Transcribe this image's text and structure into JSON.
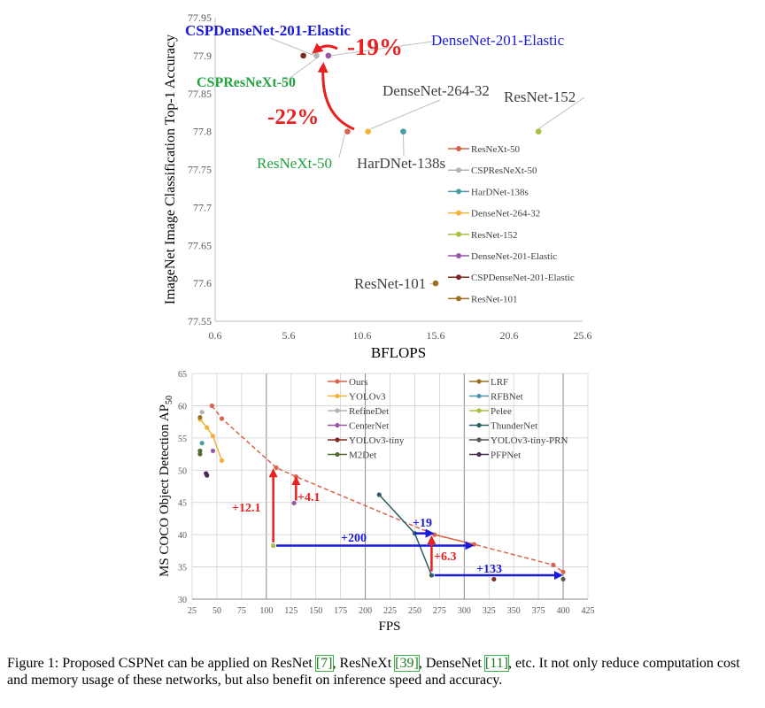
{
  "chart_data": [
    {
      "type": "scatter",
      "title": "",
      "xlabel": "BFLOPS",
      "ylabel": "ImageNet Image Classification Top-1 Accuracy",
      "xlim": [
        0.6,
        25.6
      ],
      "ylim": [
        77.55,
        77.95
      ],
      "xticks": [
        "0.6",
        "5.6",
        "10.6",
        "15.6",
        "20.6",
        "25.6"
      ],
      "yticks": [
        "77.55",
        "77.6",
        "77.65",
        "77.7",
        "77.75",
        "77.8",
        "77.85",
        "77.9",
        "77.95"
      ],
      "grid": false,
      "legend_position": "right",
      "series": [
        {
          "name": "ResNeXt-50",
          "color": "#d9634b",
          "x": [
            9.6
          ],
          "y": [
            77.8
          ]
        },
        {
          "name": "CSPResNeXt-50",
          "color": "#b3b3b3",
          "x": [
            7.5
          ],
          "y": [
            77.9
          ]
        },
        {
          "name": "HarDNet-138s",
          "color": "#4a9aa8",
          "x": [
            13.4
          ],
          "y": [
            77.8
          ]
        },
        {
          "name": "DenseNet-264-32",
          "color": "#f2b23a",
          "x": [
            11.0
          ],
          "y": [
            77.8
          ]
        },
        {
          "name": "ResNet-152",
          "color": "#a8c040",
          "x": [
            22.6
          ],
          "y": [
            77.8
          ]
        },
        {
          "name": "DenseNet-201-Elastic",
          "color": "#9a57a8",
          "x": [
            8.3
          ],
          "y": [
            77.9
          ]
        },
        {
          "name": "CSPDenseNet-201-Elastic",
          "color": "#7a2a1e",
          "x": [
            6.6
          ],
          "y": [
            77.9
          ]
        },
        {
          "name": "ResNet-101",
          "color": "#9c7020",
          "x": [
            15.6
          ],
          "y": [
            77.6
          ]
        }
      ],
      "annotations": [
        {
          "text": "CSPDenseNet-201-Elastic",
          "color": "#1a1adc",
          "bold": true
        },
        {
          "text": "DenseNet-201-Elastic",
          "color": "#1a1adc",
          "bold": false
        },
        {
          "text": "CSPResNeXt-50",
          "color": "#21a340",
          "bold": true
        },
        {
          "text": "DenseNet-264-32",
          "color": "#404040",
          "bold": false
        },
        {
          "text": "ResNet-152",
          "color": "#404040",
          "bold": false
        },
        {
          "text": "ResNeXt-50",
          "color": "#21a340",
          "bold": false
        },
        {
          "text": "HarDNet-138s",
          "color": "#404040",
          "bold": false
        },
        {
          "text": "ResNet-101",
          "color": "#404040",
          "bold": false
        },
        {
          "text": "-19%",
          "color": "#e8201e",
          "bold": true
        },
        {
          "text": "-22%",
          "color": "#e8201e",
          "bold": true
        }
      ]
    },
    {
      "type": "line",
      "title": "",
      "xlabel": "FPS",
      "ylabel": "MS COCO Object Detection AP",
      "ylabel_subscript": "50",
      "xlim": [
        25,
        425
      ],
      "ylim": [
        30,
        65
      ],
      "xticks": [
        "25",
        "50",
        "75",
        "100",
        "125",
        "150",
        "175",
        "200",
        "225",
        "250",
        "275",
        "300",
        "325",
        "350",
        "375",
        "400",
        "425"
      ],
      "yticks": [
        "30",
        "35",
        "40",
        "45",
        "50",
        "55",
        "60",
        "65"
      ],
      "grid": true,
      "legend_position": "top-right",
      "series": [
        {
          "name": "Ours",
          "color": "#d9634b",
          "dashed": true,
          "x": [
            45,
            55,
            110,
            130,
            270,
            310,
            390,
            400
          ],
          "y": [
            60.0,
            58.0,
            50.4,
            49.0,
            40.0,
            38.5,
            35.3,
            34.2
          ]
        },
        {
          "name": "YOLOv3",
          "color": "#f2b23a",
          "x": [
            33,
            40,
            46,
            55
          ],
          "y": [
            57.9,
            56.6,
            55.3,
            51.5
          ]
        },
        {
          "name": "RefineDet",
          "color": "#b3b3b3",
          "x": [
            35
          ],
          "y": [
            59.0
          ]
        },
        {
          "name": "CenterNet",
          "color": "#9a57a8",
          "x": [
            128,
            46
          ],
          "y": [
            44.9,
            53.0
          ]
        },
        {
          "name": "YOLOv3-tiny",
          "color": "#7a2a1e",
          "x": [
            330
          ],
          "y": [
            33.1
          ]
        },
        {
          "name": "M2Det",
          "color": "#556b2f",
          "x": [
            33,
            33
          ],
          "y": [
            52.5,
            53.0
          ]
        },
        {
          "name": "LRF",
          "color": "#9c7020",
          "x": [
            33
          ],
          "y": [
            58.2
          ]
        },
        {
          "name": "RFBNet",
          "color": "#4a9aa8",
          "x": [
            35
          ],
          "y": [
            54.2
          ]
        },
        {
          "name": "Pelee",
          "color": "#a8c040",
          "x": [
            107
          ],
          "y": [
            38.3
          ]
        },
        {
          "name": "ThunderNet",
          "color": "#2d5f66",
          "x": [
            214,
            250,
            267
          ],
          "y": [
            46.2,
            40.2,
            33.7
          ]
        },
        {
          "name": "YOLOv3-tiny-PRN",
          "color": "#555555",
          "x": [
            400
          ],
          "y": [
            33.1
          ]
        },
        {
          "name": "PFPNet",
          "color": "#4a2f52",
          "x": [
            39,
            40
          ],
          "y": [
            49.5,
            49.2
          ]
        }
      ],
      "annotations": [
        {
          "text": "+12.1",
          "color": "#e8201e"
        },
        {
          "text": "+4.1",
          "color": "#e8201e"
        },
        {
          "text": "+200",
          "color": "#1a1adc"
        },
        {
          "text": "+19",
          "color": "#1a1adc"
        },
        {
          "text": "+6.3",
          "color": "#e8201e"
        },
        {
          "text": "+133",
          "color": "#1a1adc"
        }
      ]
    }
  ],
  "caption": {
    "prefix": "Figure 1: Proposed CSPNet can be applied on ResNet ",
    "ref1": "[7]",
    "mid1": ", ResNeXt ",
    "ref2": "[39]",
    "mid2": ", DenseNet ",
    "ref3": "[11]",
    "suffix": ", etc.  It not only reduce computation cost and memory usage of these networks, but also benefit on inference speed and accuracy."
  }
}
